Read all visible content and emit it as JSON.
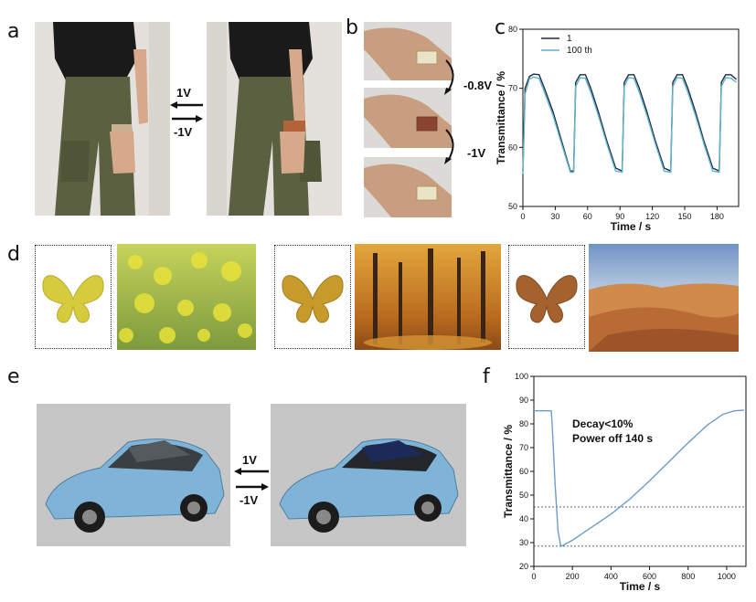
{
  "panels": {
    "a": "a",
    "b": "b",
    "c": "c",
    "d": "d",
    "e": "e",
    "f": "f"
  },
  "voltages": {
    "a_top": "1V",
    "a_bottom": "-1V",
    "b_first": "-0.8V",
    "b_second": "-1V",
    "e_top": "1V",
    "e_bottom": "-1V"
  },
  "colors": {
    "pants": "#5b6140",
    "shirt": "#1a1a1a",
    "skin": "#d6a98b",
    "car_blue": "#7fb3d8",
    "line_dark": "#1f2a44",
    "line_cyan": "#5fb4cf",
    "line_f": "#6b9ccc",
    "butterfly_yellow": "#d6cb3c",
    "butterfly_amber": "#c79a2c",
    "butterfly_brown": "#a3622e"
  },
  "chart_data": [
    {
      "panel": "c",
      "type": "line",
      "xlabel": "Time / s",
      "ylabel": "Transmittance / %",
      "xlim": [
        0,
        200
      ],
      "ylim": [
        50,
        80
      ],
      "xticks": [
        "0",
        "30",
        "60",
        "90",
        "120",
        "150",
        "180"
      ],
      "yticks": [
        "50",
        "60",
        "70",
        "80"
      ],
      "legend_position": "top-left",
      "series": [
        {
          "name": "1",
          "x": [
            0,
            2,
            6,
            10,
            15,
            20,
            28,
            36,
            44,
            47,
            49,
            53,
            58,
            63,
            70,
            78,
            86,
            92,
            94,
            98,
            103,
            108,
            115,
            123,
            131,
            137,
            139,
            143,
            148,
            153,
            160,
            168,
            176,
            182,
            184,
            188,
            193,
            198
          ],
          "y": [
            56,
            70,
            72,
            72.4,
            72.3,
            70,
            66,
            61,
            56,
            56,
            71,
            72.3,
            72.3,
            70,
            66,
            61,
            56.5,
            56,
            71,
            72.3,
            72.3,
            70,
            66,
            61,
            56.5,
            56,
            71,
            72.3,
            72.3,
            70,
            66,
            61,
            56.5,
            56,
            71,
            72.3,
            72.3,
            71.5
          ]
        },
        {
          "name": "100 th",
          "x": [
            0,
            2,
            6,
            10,
            15,
            20,
            28,
            36,
            44,
            47,
            49,
            53,
            58,
            63,
            70,
            78,
            86,
            92,
            94,
            98,
            103,
            108,
            115,
            123,
            131,
            137,
            139,
            143,
            148,
            153,
            160,
            168,
            176,
            182,
            184,
            188,
            193,
            198
          ],
          "y": [
            55.5,
            69,
            71.6,
            71.9,
            71.7,
            69.3,
            65.4,
            60.5,
            55.8,
            55.8,
            70.3,
            71.8,
            71.7,
            69.3,
            65.4,
            60.5,
            56,
            55.8,
            70.3,
            71.8,
            71.7,
            69.3,
            65.4,
            60.5,
            56,
            55.8,
            70.3,
            71.8,
            71.7,
            69.3,
            65.4,
            60.5,
            56,
            55.8,
            70.3,
            71.8,
            71.7,
            71
          ]
        }
      ]
    },
    {
      "panel": "f",
      "type": "line",
      "xlabel": "Time / s",
      "ylabel": "Transmittance / %",
      "xlim": [
        0,
        1100
      ],
      "ylim": [
        20,
        100
      ],
      "xticks": [
        "0",
        "200",
        "400",
        "600",
        "800",
        "1000"
      ],
      "yticks": [
        "20",
        "30",
        "40",
        "50",
        "60",
        "70",
        "80",
        "90",
        "100"
      ],
      "annotations": [
        "Decay<10%",
        "Power off 140 s"
      ],
      "reference_lines": [
        45,
        28.5
      ],
      "series": [
        {
          "x": [
            0,
            90,
            95,
            110,
            125,
            140,
            150,
            200,
            300,
            400,
            500,
            600,
            700,
            800,
            900,
            980,
            1040,
            1090
          ],
          "y": [
            85.5,
            85.5,
            80,
            55,
            35,
            28.5,
            28.8,
            31,
            36.5,
            42,
            48.5,
            56,
            64,
            72,
            79.5,
            84,
            85.5,
            85.8
          ]
        }
      ]
    }
  ]
}
